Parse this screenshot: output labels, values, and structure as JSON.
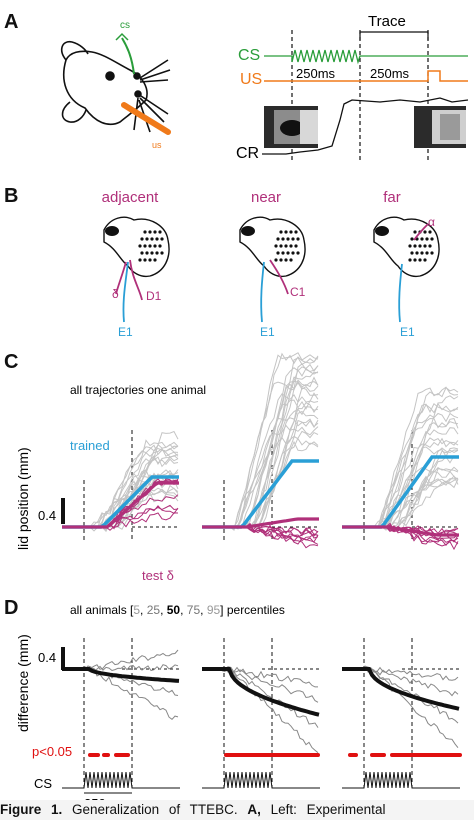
{
  "panels": {
    "A": {
      "letter": "A",
      "cs_small_label": "cs",
      "us_small_label": "us",
      "trace_label": "Trace",
      "cs_label": "CS",
      "us_label": "US",
      "cr_label": "CR",
      "interval_1": "250ms",
      "interval_2": "250ms",
      "colors": {
        "cs": "#2a9d3a",
        "us": "#f07a1a"
      }
    },
    "B": {
      "letter": "B",
      "titles": [
        "adjacent",
        "near",
        "far"
      ],
      "whisker_labels": {
        "adjacent": [
          "δ",
          "D1",
          "E1"
        ],
        "near": [
          "C1",
          "E1"
        ],
        "far": [
          "α",
          "E1"
        ]
      },
      "colors": {
        "trained": "#2a9fd6",
        "test": "#b0307a"
      }
    },
    "C": {
      "letter": "C",
      "subtitle": "all trajectories one animal",
      "trained_label": "trained",
      "test_label": "test δ",
      "ylabel": "lid position (mm)",
      "scale_value": "0.4"
    },
    "D": {
      "letter": "D",
      "subtitle_pre": "all animals [",
      "p5": "5",
      "sep1": ", ",
      "p25": "25",
      "sep2": ", ",
      "p50": "50",
      "sep3": ", ",
      "p75": "75",
      "sep4": ", ",
      "p95": "95",
      "subtitle_post": "] percentiles",
      "ylabel": "difference (mm)",
      "scale_value": "0.4",
      "pval_label": "p<0.05",
      "cs_label": "CS",
      "time_label": "250ms",
      "colors": {
        "sig": "#e01010",
        "p": "#888888"
      }
    }
  },
  "caption": {
    "fig": "Figure 1.",
    "text": "Generalization of TTEBC.",
    "panel": "A,",
    "rest": "Left: Experimental"
  }
}
